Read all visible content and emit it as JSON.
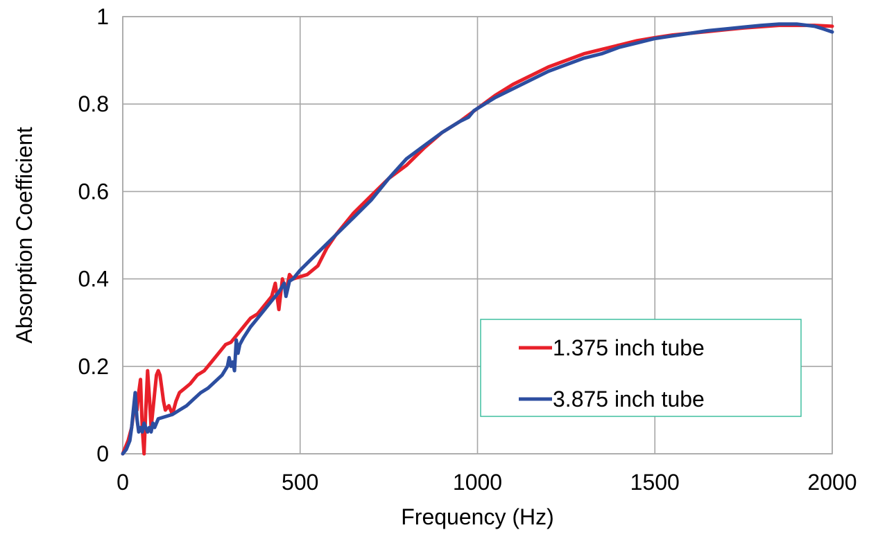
{
  "chart_data": {
    "type": "line",
    "title": "",
    "xlabel": "Frequency (Hz)",
    "ylabel": "Absorption Coefficient",
    "xlim": [
      0,
      2000
    ],
    "ylim": [
      0,
      1
    ],
    "x_ticks": [
      0,
      500,
      1000,
      1500,
      2000
    ],
    "y_ticks": [
      0,
      0.2,
      0.4,
      0.6,
      0.8,
      1
    ],
    "x_tick_labels": [
      "0",
      "500",
      "1000",
      "1500",
      "2000"
    ],
    "y_tick_labels": [
      "0",
      "0.2",
      "0.4",
      "0.6",
      "0.8",
      "1"
    ],
    "grid": true,
    "legend_position": "center-right",
    "series": [
      {
        "name": "1.375 inch tube",
        "color": "#e8202a",
        "points": [
          [
            0,
            0
          ],
          [
            15,
            0.03
          ],
          [
            25,
            0.06
          ],
          [
            35,
            0.12
          ],
          [
            40,
            0.1
          ],
          [
            45,
            0.14
          ],
          [
            50,
            0.17
          ],
          [
            55,
            0.06
          ],
          [
            60,
            0.0
          ],
          [
            65,
            0.1
          ],
          [
            70,
            0.19
          ],
          [
            75,
            0.13
          ],
          [
            80,
            0.06
          ],
          [
            85,
            0.1
          ],
          [
            90,
            0.14
          ],
          [
            95,
            0.18
          ],
          [
            100,
            0.19
          ],
          [
            105,
            0.18
          ],
          [
            110,
            0.15
          ],
          [
            115,
            0.12
          ],
          [
            120,
            0.1
          ],
          [
            130,
            0.11
          ],
          [
            140,
            0.09
          ],
          [
            150,
            0.12
          ],
          [
            160,
            0.14
          ],
          [
            175,
            0.15
          ],
          [
            190,
            0.16
          ],
          [
            210,
            0.18
          ],
          [
            230,
            0.19
          ],
          [
            250,
            0.21
          ],
          [
            270,
            0.23
          ],
          [
            290,
            0.25
          ],
          [
            305,
            0.255
          ],
          [
            320,
            0.27
          ],
          [
            340,
            0.29
          ],
          [
            360,
            0.31
          ],
          [
            380,
            0.32
          ],
          [
            400,
            0.34
          ],
          [
            420,
            0.36
          ],
          [
            430,
            0.39
          ],
          [
            440,
            0.33
          ],
          [
            450,
            0.4
          ],
          [
            460,
            0.37
          ],
          [
            470,
            0.41
          ],
          [
            480,
            0.4
          ],
          [
            500,
            0.405
          ],
          [
            520,
            0.41
          ],
          [
            550,
            0.43
          ],
          [
            575,
            0.47
          ],
          [
            600,
            0.5
          ],
          [
            650,
            0.55
          ],
          [
            700,
            0.59
          ],
          [
            750,
            0.63
          ],
          [
            800,
            0.66
          ],
          [
            850,
            0.7
          ],
          [
            900,
            0.735
          ],
          [
            950,
            0.76
          ],
          [
            1000,
            0.79
          ],
          [
            1050,
            0.82
          ],
          [
            1100,
            0.845
          ],
          [
            1150,
            0.865
          ],
          [
            1200,
            0.885
          ],
          [
            1250,
            0.9
          ],
          [
            1300,
            0.915
          ],
          [
            1350,
            0.925
          ],
          [
            1400,
            0.935
          ],
          [
            1450,
            0.945
          ],
          [
            1500,
            0.952
          ],
          [
            1550,
            0.958
          ],
          [
            1600,
            0.962
          ],
          [
            1650,
            0.966
          ],
          [
            1700,
            0.97
          ],
          [
            1750,
            0.974
          ],
          [
            1800,
            0.977
          ],
          [
            1850,
            0.98
          ],
          [
            1900,
            0.98
          ],
          [
            1950,
            0.98
          ],
          [
            2000,
            0.978
          ]
        ]
      },
      {
        "name": "3.875 inch tube",
        "color": "#2c4ea0",
        "points": [
          [
            0,
            0
          ],
          [
            10,
            0.01
          ],
          [
            20,
            0.03
          ],
          [
            25,
            0.06
          ],
          [
            30,
            0.1
          ],
          [
            35,
            0.14
          ],
          [
            40,
            0.08
          ],
          [
            45,
            0.05
          ],
          [
            50,
            0.06
          ],
          [
            55,
            0.05
          ],
          [
            60,
            0.07
          ],
          [
            65,
            0.06
          ],
          [
            70,
            0.05
          ],
          [
            75,
            0.06
          ],
          [
            80,
            0.05
          ],
          [
            85,
            0.07
          ],
          [
            90,
            0.06
          ],
          [
            100,
            0.08
          ],
          [
            120,
            0.085
          ],
          [
            140,
            0.09
          ],
          [
            150,
            0.095
          ],
          [
            160,
            0.1
          ],
          [
            180,
            0.11
          ],
          [
            200,
            0.125
          ],
          [
            220,
            0.14
          ],
          [
            240,
            0.15
          ],
          [
            260,
            0.165
          ],
          [
            280,
            0.18
          ],
          [
            295,
            0.2
          ],
          [
            300,
            0.22
          ],
          [
            305,
            0.2
          ],
          [
            310,
            0.21
          ],
          [
            315,
            0.19
          ],
          [
            320,
            0.26
          ],
          [
            325,
            0.23
          ],
          [
            330,
            0.25
          ],
          [
            340,
            0.265
          ],
          [
            360,
            0.29
          ],
          [
            380,
            0.31
          ],
          [
            400,
            0.33
          ],
          [
            420,
            0.35
          ],
          [
            440,
            0.37
          ],
          [
            455,
            0.39
          ],
          [
            460,
            0.36
          ],
          [
            470,
            0.395
          ],
          [
            480,
            0.4
          ],
          [
            500,
            0.42
          ],
          [
            550,
            0.46
          ],
          [
            600,
            0.5
          ],
          [
            650,
            0.54
          ],
          [
            700,
            0.58
          ],
          [
            750,
            0.63
          ],
          [
            800,
            0.675
          ],
          [
            850,
            0.705
          ],
          [
            900,
            0.735
          ],
          [
            950,
            0.76
          ],
          [
            975,
            0.77
          ],
          [
            990,
            0.785
          ],
          [
            1000,
            0.79
          ],
          [
            1050,
            0.815
          ],
          [
            1100,
            0.835
          ],
          [
            1150,
            0.855
          ],
          [
            1200,
            0.875
          ],
          [
            1250,
            0.89
          ],
          [
            1300,
            0.905
          ],
          [
            1350,
            0.915
          ],
          [
            1400,
            0.93
          ],
          [
            1450,
            0.94
          ],
          [
            1500,
            0.95
          ],
          [
            1550,
            0.956
          ],
          [
            1600,
            0.962
          ],
          [
            1650,
            0.968
          ],
          [
            1700,
            0.972
          ],
          [
            1750,
            0.976
          ],
          [
            1800,
            0.98
          ],
          [
            1850,
            0.983
          ],
          [
            1900,
            0.983
          ],
          [
            1950,
            0.978
          ],
          [
            1975,
            0.972
          ],
          [
            2000,
            0.965
          ]
        ]
      }
    ]
  }
}
